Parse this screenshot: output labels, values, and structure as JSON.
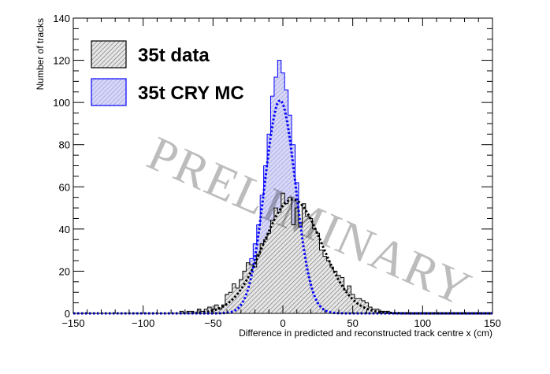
{
  "chart_data": {
    "type": "bar",
    "title": "",
    "xlabel": "Difference in predicted and reconstructed track centre x (cm)",
    "ylabel": "Number of tracks",
    "xlim": [
      -150,
      150
    ],
    "ylim": [
      0,
      140
    ],
    "x_ticks": [
      -150,
      -100,
      -50,
      0,
      50,
      100,
      150
    ],
    "y_ticks": [
      0,
      20,
      40,
      60,
      80,
      100,
      120,
      140
    ],
    "legend_position": "top-left",
    "watermark": "PRELIMINARY",
    "grid": false,
    "bin_width": 2.5,
    "series": [
      {
        "name": "35t data",
        "style": "histogram",
        "color": "#000000",
        "fill": "hatched-gray",
        "bins_x": [
          -75,
          -72.5,
          -70,
          -67.5,
          -65,
          -62.5,
          -60,
          -57.5,
          -55,
          -52.5,
          -50,
          -47.5,
          -45,
          -42.5,
          -40,
          -37.5,
          -35,
          -32.5,
          -30,
          -27.5,
          -25,
          -22.5,
          -20,
          -17.5,
          -15,
          -12.5,
          -10,
          -7.5,
          -5,
          -2.5,
          0,
          2.5,
          5,
          7.5,
          10,
          12.5,
          15,
          17.5,
          20,
          22.5,
          25,
          27.5,
          30,
          32.5,
          35,
          37.5,
          40,
          42.5,
          45,
          47.5,
          50,
          52.5,
          55,
          57.5,
          60,
          62.5,
          65,
          67.5,
          70,
          72.5,
          75,
          77.5,
          80
        ],
        "values": [
          0,
          1,
          0,
          1,
          1,
          0,
          2,
          1,
          2,
          3,
          2,
          4,
          2,
          4,
          9,
          10,
          14,
          12,
          16,
          20,
          24,
          23,
          22,
          28,
          33,
          35,
          38,
          44,
          50,
          48,
          57,
          52,
          55,
          42,
          50,
          41,
          52,
          46,
          45,
          40,
          38,
          30,
          27,
          25,
          22,
          20,
          18,
          17,
          11,
          13,
          9,
          7,
          7,
          6,
          5,
          3,
          2,
          2,
          1,
          1,
          1,
          0,
          0
        ]
      },
      {
        "name": "35t CRY MC",
        "style": "histogram",
        "color": "#0000ff",
        "fill": "hatched-blue",
        "bins_x": [
          -50,
          -47.5,
          -45,
          -42.5,
          -40,
          -37.5,
          -35,
          -32.5,
          -30,
          -27.5,
          -25,
          -22.5,
          -20,
          -17.5,
          -15,
          -12.5,
          -10,
          -7.5,
          -5,
          -2.5,
          0,
          2.5,
          5,
          7.5,
          10,
          12.5,
          15,
          17.5,
          20,
          22.5,
          25,
          27.5,
          30,
          32.5,
          35
        ],
        "values": [
          1,
          2,
          1,
          2,
          3,
          4,
          6,
          8,
          11,
          15,
          20,
          26,
          33,
          42,
          56,
          70,
          85,
          103,
          112,
          120,
          114,
          106,
          94,
          80,
          62,
          43,
          30,
          18,
          12,
          7,
          4,
          2,
          1,
          1,
          0
        ]
      },
      {
        "name": "data fit",
        "style": "dotted-curve",
        "color": "#000000",
        "function": "gaussian",
        "mean": 7,
        "sigma": 21,
        "amplitude": 54
      },
      {
        "name": "MC fit",
        "style": "dotted-curve",
        "color": "#0000ff",
        "function": "gaussian",
        "mean": -2,
        "sigma": 11,
        "amplitude": 101
      }
    ]
  },
  "colors": {
    "data": "#000000",
    "mc": "#0000ff",
    "mc_fill": "#c8c8f0",
    "data_fill": "#d8d8d8"
  }
}
